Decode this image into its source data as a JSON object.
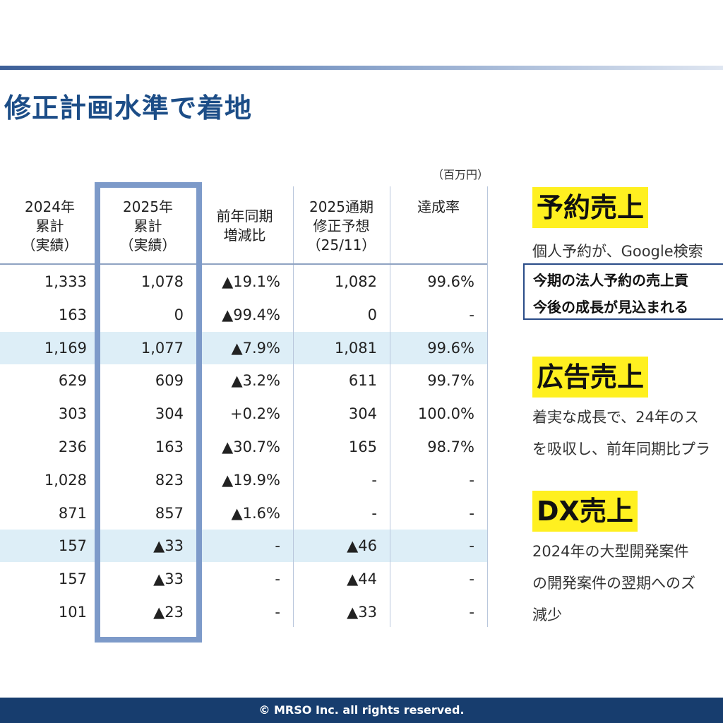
{
  "title": "修正計画水準で着地",
  "unit_label": "（百万円）",
  "table": {
    "headers": [
      "2024年\n累計\n（実績）",
      "2025年\n累計\n（実績）",
      "前年同期\n増減比",
      "2025通期\n修正予想\n（25/11）",
      "達成率"
    ],
    "rows": [
      [
        "1,333",
        "1,078",
        "▲19.1%",
        "1,082",
        "99.6%"
      ],
      [
        "163",
        "0",
        "▲99.4%",
        "0",
        "-"
      ],
      [
        "1,169",
        "1,077",
        "▲7.9%",
        "1,081",
        "99.6%"
      ],
      [
        "629",
        "609",
        "▲3.2%",
        "611",
        "99.7%"
      ],
      [
        "303",
        "304",
        "+0.2%",
        "304",
        "100.0%"
      ],
      [
        "236",
        "163",
        "▲30.7%",
        "165",
        "98.7%"
      ],
      [
        "1,028",
        "823",
        "▲19.9%",
        "-",
        "-"
      ],
      [
        "871",
        "857",
        "▲1.6%",
        "-",
        "-"
      ],
      [
        "157",
        "▲33",
        "-",
        "▲46",
        "-"
      ],
      [
        "157",
        "▲33",
        "-",
        "▲44",
        "-"
      ],
      [
        "101",
        "▲23",
        "-",
        "▲33",
        "-"
      ]
    ],
    "shaded_rows": [
      2,
      8
    ]
  },
  "sections": [
    {
      "title": "予約売上",
      "lines": [
        "個人予約が、Google検索"
      ],
      "callout": [
        "今期の法人予約の売上貢",
        "今後の成長が見込まれる"
      ]
    },
    {
      "title": "広告売上",
      "lines": [
        "着実な成長で、24年のス",
        "を吸収し、前年同期比プラ"
      ]
    },
    {
      "title": "DX売上",
      "lines": [
        "2024年の大型開発案件",
        "の開発案件の翌期へのズ",
        "減少"
      ]
    }
  ],
  "footer": "© MRSO Inc. all rights reserved.",
  "colors": {
    "title": "#1c4d87",
    "highlight": "#7d9ac9",
    "band": "#ddeef7",
    "marker": "#fff020",
    "footer": "#173d6e"
  }
}
